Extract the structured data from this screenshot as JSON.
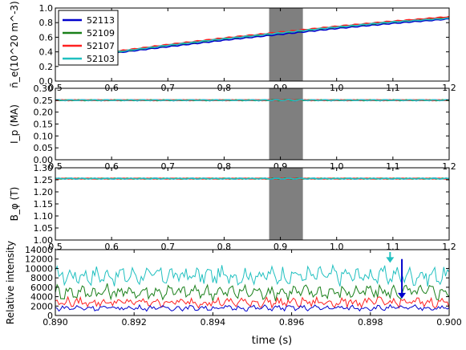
{
  "colors": {
    "52113": "#0000cc",
    "52109": "#1a801a",
    "52107": "#ff2020",
    "52103": "#20c0c0",
    "band": "#7f7f7f"
  },
  "xlabel": "time (s)",
  "chart_data": [
    {
      "id": "ne",
      "type": "line",
      "ylabel": "n̄_e(10^20 m^-3)",
      "xlim": [
        0.5,
        1.2
      ],
      "ylim": [
        0.0,
        1.0
      ],
      "xticks": [
        "0.5",
        "0.6",
        "0.7",
        "0.8",
        "0.9",
        "1.0",
        "1.1",
        "1.2"
      ],
      "yticks": [
        "0.0",
        "0.2",
        "0.4",
        "0.6",
        "0.8",
        "1.0"
      ],
      "shaded_band": [
        0.88,
        0.94
      ],
      "legend": {
        "position": "top-left",
        "entries": [
          "52113",
          "52109",
          "52107",
          "52103"
        ]
      },
      "series": [
        {
          "name": "52113",
          "x": [
            0.59,
            0.7,
            0.8,
            0.9,
            1.0,
            1.1,
            1.2
          ],
          "y": [
            0.37,
            0.47,
            0.56,
            0.64,
            0.72,
            0.79,
            0.85
          ]
        },
        {
          "name": "52109",
          "x": [
            0.59,
            0.7,
            0.8,
            0.9,
            1.0,
            1.1,
            1.2
          ],
          "y": [
            0.38,
            0.49,
            0.58,
            0.66,
            0.74,
            0.81,
            0.87
          ]
        },
        {
          "name": "52107",
          "x": [
            0.59,
            0.7,
            0.8,
            0.9,
            1.0,
            1.1,
            1.2
          ],
          "y": [
            0.39,
            0.5,
            0.59,
            0.67,
            0.75,
            0.82,
            0.88
          ]
        },
        {
          "name": "52103",
          "x": [
            0.59,
            0.7,
            0.8,
            0.9,
            1.0,
            1.1,
            1.2
          ],
          "y": [
            0.38,
            0.49,
            0.58,
            0.66,
            0.74,
            0.81,
            0.86
          ]
        }
      ]
    },
    {
      "id": "ip",
      "type": "line",
      "ylabel": "I_p (MA)",
      "xlim": [
        0.5,
        1.2
      ],
      "ylim": [
        0.0,
        0.3
      ],
      "xticks": [
        "0.5",
        "0.6",
        "0.7",
        "0.8",
        "0.9",
        "1.0",
        "1.1",
        "1.2"
      ],
      "yticks": [
        "0.00",
        "0.05",
        "0.10",
        "0.15",
        "0.20",
        "0.25",
        "0.30"
      ],
      "shaded_band": [
        0.88,
        0.94
      ],
      "series": [
        {
          "name": "52113",
          "x": [
            0.5,
            1.2
          ],
          "y": [
            0.25,
            0.25
          ]
        },
        {
          "name": "52109",
          "x": [
            0.5,
            1.2
          ],
          "y": [
            0.25,
            0.25
          ]
        },
        {
          "name": "52107",
          "x": [
            0.5,
            1.2
          ],
          "y": [
            0.25,
            0.25
          ]
        },
        {
          "name": "52103",
          "x": [
            0.5,
            1.2
          ],
          "y": [
            0.25,
            0.25
          ]
        }
      ]
    },
    {
      "id": "bphi",
      "type": "line",
      "ylabel": "B_φ (T)",
      "xlim": [
        0.5,
        1.2
      ],
      "ylim": [
        1.0,
        1.3
      ],
      "xticks": [
        "0.5",
        "0.6",
        "0.7",
        "0.8",
        "0.9",
        "1.0",
        "1.1",
        "1.2"
      ],
      "yticks": [
        "1.00",
        "1.05",
        "1.10",
        "1.15",
        "1.20",
        "1.25",
        "1.30"
      ],
      "shaded_band": [
        0.88,
        0.94
      ],
      "series": [
        {
          "name": "52113",
          "x": [
            0.5,
            1.2
          ],
          "y": [
            1.255,
            1.255
          ]
        },
        {
          "name": "52109",
          "x": [
            0.5,
            1.2
          ],
          "y": [
            1.255,
            1.255
          ]
        },
        {
          "name": "52107",
          "x": [
            0.5,
            1.2
          ],
          "y": [
            1.255,
            1.255
          ]
        },
        {
          "name": "52103",
          "x": [
            0.5,
            1.2
          ],
          "y": [
            1.255,
            1.255
          ]
        }
      ]
    },
    {
      "id": "intensity",
      "type": "line",
      "ylabel": "Relative intensity",
      "xlabel": "time (s)",
      "xlim": [
        0.89,
        0.9
      ],
      "ylim": [
        0,
        14000
      ],
      "xticks": [
        "0.890",
        "0.892",
        "0.894",
        "0.896",
        "0.898",
        "0.900"
      ],
      "yticks": [
        "0",
        "2000",
        "4000",
        "6000",
        "8000",
        "10000",
        "12000",
        "14000"
      ],
      "arrows": [
        {
          "series": "52103",
          "x": 0.8985,
          "y_from": 13500,
          "y_to": 11200
        },
        {
          "series": "52113",
          "x": 0.8988,
          "y_from": 12000,
          "y_to": 3600
        }
      ],
      "series": [
        {
          "name": "52103",
          "base": 8500,
          "amp": 1700,
          "x_range": [
            0.89,
            0.9
          ]
        },
        {
          "name": "52109",
          "base": 5000,
          "amp": 1400,
          "x_range": [
            0.89,
            0.9
          ]
        },
        {
          "name": "52107",
          "base": 2800,
          "amp": 900,
          "x_range": [
            0.89,
            0.9
          ]
        },
        {
          "name": "52113",
          "base": 1600,
          "amp": 500,
          "x_range": [
            0.89,
            0.9
          ]
        }
      ]
    }
  ]
}
